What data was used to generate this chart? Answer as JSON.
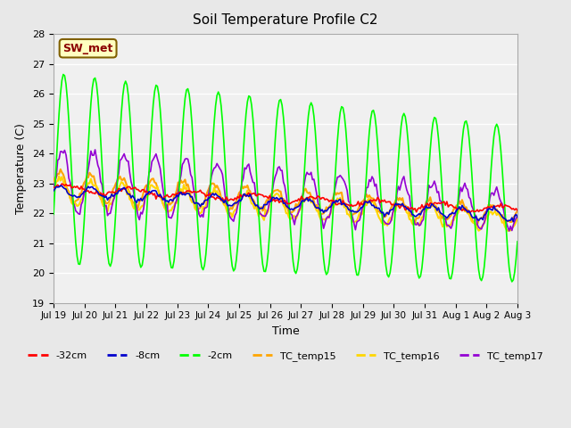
{
  "title": "Soil Temperature Profile C2",
  "xlabel": "Time",
  "ylabel": "Temperature (C)",
  "ylim": [
    19.0,
    28.0
  ],
  "yticks": [
    19.0,
    20.0,
    21.0,
    22.0,
    23.0,
    24.0,
    25.0,
    26.0,
    27.0,
    28.0
  ],
  "xtick_labels": [
    "Jul 19",
    "Jul 20",
    "Jul 21",
    "Jul 22",
    "Jul 23",
    "Jul 24",
    "Jul 25",
    "Jul 26",
    "Jul 27",
    "Jul 28",
    "Jul 29",
    "Jul 30",
    "Jul 31",
    "Aug 1",
    "Aug 2",
    "Aug 3"
  ],
  "xtick_pos": [
    0,
    1,
    2,
    3,
    4,
    5,
    6,
    7,
    8,
    9,
    10,
    11,
    12,
    13,
    14,
    15
  ],
  "annotation_text": "SW_met",
  "annotation_color": "#8B0000",
  "annotation_bg": "#FFFFC0",
  "annotation_border": "#806000",
  "colors": {
    "-32cm": "#FF0000",
    "-8cm": "#0000CD",
    "-2cm": "#00FF00",
    "TC_temp15": "#FFA500",
    "TC_temp16": "#FFD700",
    "TC_temp17": "#9400D3"
  },
  "bg_color": "#E8E8E8",
  "plot_bg": "#F0F0F0",
  "grid_color": "#FFFFFF",
  "n_points": 336,
  "days": 15,
  "xlim": [
    0,
    15
  ]
}
